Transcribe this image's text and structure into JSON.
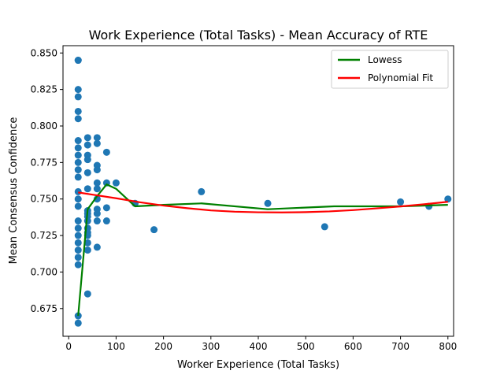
{
  "chart_data": {
    "type": "scatter",
    "title": "Work Experience (Total Tasks) - Mean Accuracy of RTE",
    "xlabel": "Worker Experience (Total Tasks)",
    "ylabel": "Mean Consensus Confidence",
    "xlim": [
      -12,
      812
    ],
    "ylim": [
      0.656,
      0.855
    ],
    "xticks": [
      0,
      100,
      200,
      300,
      400,
      500,
      600,
      700,
      800
    ],
    "yticks": [
      0.675,
      0.7,
      0.725,
      0.75,
      0.775,
      0.8,
      0.825,
      0.85
    ],
    "ytick_labels": [
      "0.675",
      "0.700",
      "0.725",
      "0.750",
      "0.775",
      "0.800",
      "0.825",
      "0.850"
    ],
    "grid": false,
    "legend_position": "top-right",
    "points": [
      [
        20,
        0.845
      ],
      [
        20,
        0.845
      ],
      [
        20,
        0.825
      ],
      [
        20,
        0.82
      ],
      [
        20,
        0.81
      ],
      [
        20,
        0.805
      ],
      [
        20,
        0.79
      ],
      [
        20,
        0.785
      ],
      [
        20,
        0.78
      ],
      [
        20,
        0.775
      ],
      [
        20,
        0.77
      ],
      [
        20,
        0.765
      ],
      [
        20,
        0.755
      ],
      [
        20,
        0.75
      ],
      [
        20,
        0.745
      ],
      [
        20,
        0.735
      ],
      [
        20,
        0.73
      ],
      [
        20,
        0.725
      ],
      [
        20,
        0.72
      ],
      [
        20,
        0.715
      ],
      [
        20,
        0.71
      ],
      [
        20,
        0.705
      ],
      [
        20,
        0.67
      ],
      [
        20,
        0.665
      ],
      [
        40,
        0.792
      ],
      [
        40,
        0.787
      ],
      [
        40,
        0.78
      ],
      [
        40,
        0.777
      ],
      [
        40,
        0.768
      ],
      [
        40,
        0.757
      ],
      [
        40,
        0.742
      ],
      [
        40,
        0.74
      ],
      [
        40,
        0.738
      ],
      [
        40,
        0.735
      ],
      [
        40,
        0.73
      ],
      [
        40,
        0.727
      ],
      [
        40,
        0.725
      ],
      [
        40,
        0.72
      ],
      [
        40,
        0.715
      ],
      [
        40,
        0.685
      ],
      [
        60,
        0.792
      ],
      [
        60,
        0.788
      ],
      [
        60,
        0.773
      ],
      [
        60,
        0.77
      ],
      [
        60,
        0.761
      ],
      [
        60,
        0.757
      ],
      [
        60,
        0.75
      ],
      [
        60,
        0.743
      ],
      [
        60,
        0.74
      ],
      [
        60,
        0.735
      ],
      [
        60,
        0.717
      ],
      [
        80,
        0.782
      ],
      [
        80,
        0.761
      ],
      [
        80,
        0.744
      ],
      [
        80,
        0.735
      ],
      [
        100,
        0.761
      ],
      [
        140,
        0.747
      ],
      [
        180,
        0.729
      ],
      [
        280,
        0.755
      ],
      [
        420,
        0.747
      ],
      [
        540,
        0.731
      ],
      [
        700,
        0.748
      ],
      [
        760,
        0.745
      ],
      [
        800,
        0.75
      ]
    ],
    "series": [
      {
        "name": "Lowess",
        "color": "#008000",
        "x": [
          20,
          40,
          60,
          80,
          100,
          140,
          200,
          280,
          420,
          560,
          700,
          800
        ],
        "y": [
          0.67,
          0.743,
          0.752,
          0.76,
          0.757,
          0.745,
          0.746,
          0.747,
          0.743,
          0.745,
          0.745,
          0.746
        ]
      },
      {
        "name": "Polynomial Fit",
        "color": "#ff0000",
        "x": [
          20,
          60,
          100,
          150,
          200,
          250,
          300,
          350,
          400,
          450,
          500,
          550,
          600,
          650,
          700,
          750,
          800
        ],
        "y": [
          0.7545,
          0.7525,
          0.7505,
          0.7478,
          0.7455,
          0.7437,
          0.7422,
          0.7413,
          0.7409,
          0.7408,
          0.741,
          0.7415,
          0.7424,
          0.7436,
          0.7449,
          0.7464,
          0.7481
        ]
      }
    ],
    "point_color": "#1f77b4"
  }
}
